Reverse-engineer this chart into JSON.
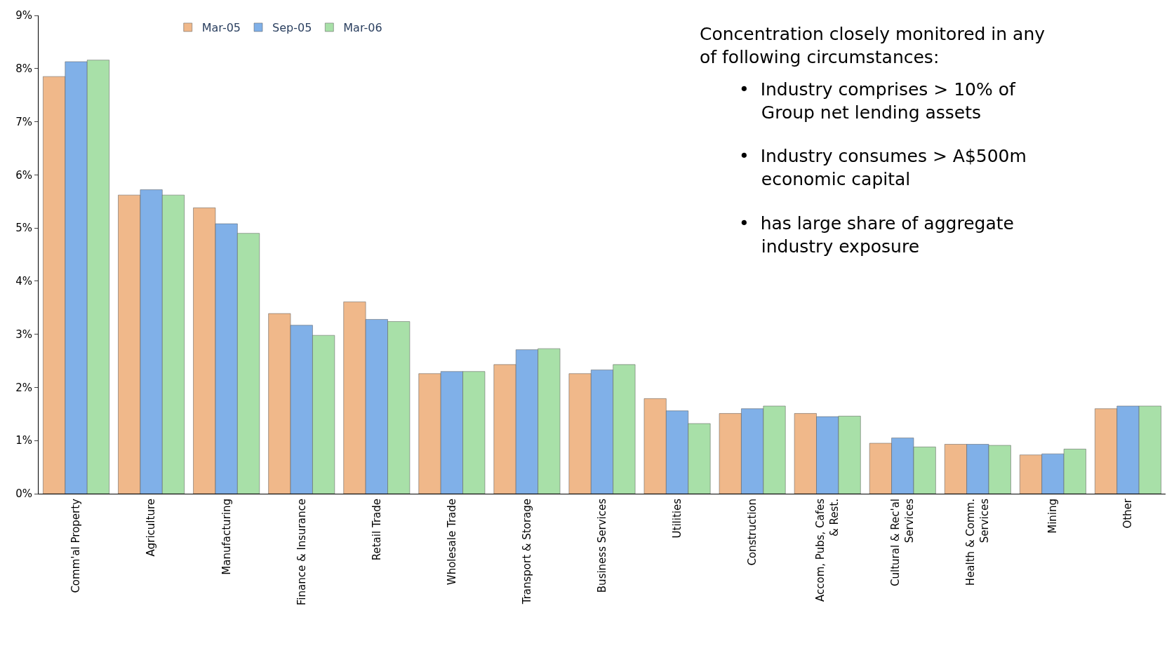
{
  "chart_data": {
    "type": "bar",
    "categories": [
      "Comm'al Property",
      "Agriculture",
      "Manufacturing",
      "Finance & Insurance",
      "Retail Trade",
      "Wholesale Trade",
      "Transport & Storage",
      "Business Services",
      "Utilities",
      "Construction",
      "Accom, Pubs, Cafes\n& Rest.",
      "Cultural & Rec'al\nServices",
      "Health & Comm.\nServices",
      "Mining",
      "Other"
    ],
    "series": [
      {
        "name": "Mar-05",
        "color": "#f0b88a",
        "values": [
          7.85,
          5.62,
          5.38,
          3.39,
          3.61,
          2.26,
          2.43,
          2.26,
          1.79,
          1.51,
          1.51,
          0.95,
          0.93,
          0.73,
          1.6
        ]
      },
      {
        "name": "Sep-05",
        "color": "#80b0e8",
        "values": [
          8.13,
          5.72,
          5.08,
          3.17,
          3.28,
          2.3,
          2.71,
          2.33,
          1.56,
          1.6,
          1.45,
          1.05,
          0.93,
          0.75,
          1.65
        ]
      },
      {
        "name": "Mar-06",
        "color": "#a8e0a8",
        "values": [
          8.16,
          5.62,
          4.9,
          2.98,
          3.24,
          2.3,
          2.73,
          2.43,
          1.32,
          1.65,
          1.46,
          0.88,
          0.91,
          0.84,
          1.65
        ]
      }
    ],
    "ylim": [
      0,
      9
    ],
    "yticks": [
      {
        "value": 0,
        "label": "0%"
      },
      {
        "value": 1,
        "label": "1%"
      },
      {
        "value": 2,
        "label": "2%"
      },
      {
        "value": 3,
        "label": "3%"
      },
      {
        "value": 4,
        "label": "4%"
      },
      {
        "value": 5,
        "label": "5%"
      },
      {
        "value": 6,
        "label": "6%"
      },
      {
        "value": 7,
        "label": "7%"
      },
      {
        "value": 8,
        "label": "8%"
      },
      {
        "value": 9,
        "label": "9%"
      }
    ],
    "legend": "top left",
    "annotations": [
      "Concentration closely monitored in any\nof following circumstances:",
      "•  Industry comprises > 10% of\n    Group net lending assets",
      "•  Industry consumes > A$500m\n    economic capital",
      "•  has large share of aggregate\n    industry exposure"
    ]
  }
}
